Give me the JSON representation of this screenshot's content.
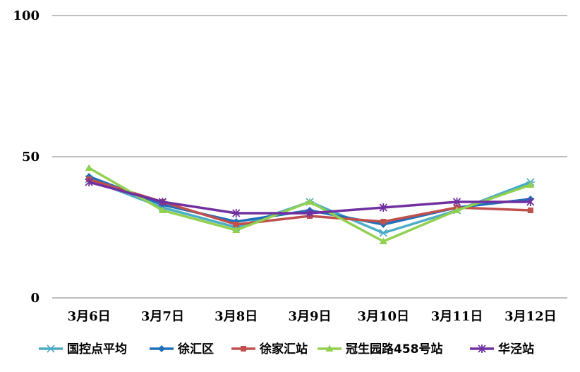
{
  "chart_data": {
    "type": "line",
    "categories": [
      "3月6日",
      "3月7日",
      "3月8日",
      "3月9日",
      "3月10日",
      "3月11日",
      "3月12日"
    ],
    "ylim": [
      0,
      100
    ],
    "yticks": [
      "0",
      "50",
      "100"
    ],
    "grid": true,
    "legend_position": "bottom",
    "series": [
      {
        "name": "国控点平均",
        "color": "#4bacc6",
        "marker": "asterisk",
        "values": [
          42,
          32,
          25,
          34,
          23,
          31,
          41
        ]
      },
      {
        "name": "徐汇区",
        "color": "#1f6fba",
        "marker": "diamond",
        "values": [
          43,
          33,
          27,
          31,
          26,
          32,
          35
        ]
      },
      {
        "name": "徐家汇站",
        "color": "#c0504d",
        "marker": "square",
        "values": [
          42,
          34,
          26,
          29,
          27,
          32,
          31
        ]
      },
      {
        "name": "冠生园路458号站",
        "color": "#92d050",
        "marker": "triangle",
        "values": [
          46,
          31,
          24,
          34,
          20,
          31,
          40
        ]
      },
      {
        "name": "华泾站",
        "color": "#7030a0",
        "marker": "star",
        "values": [
          41,
          34,
          30,
          30,
          32,
          34,
          34
        ]
      }
    ]
  }
}
